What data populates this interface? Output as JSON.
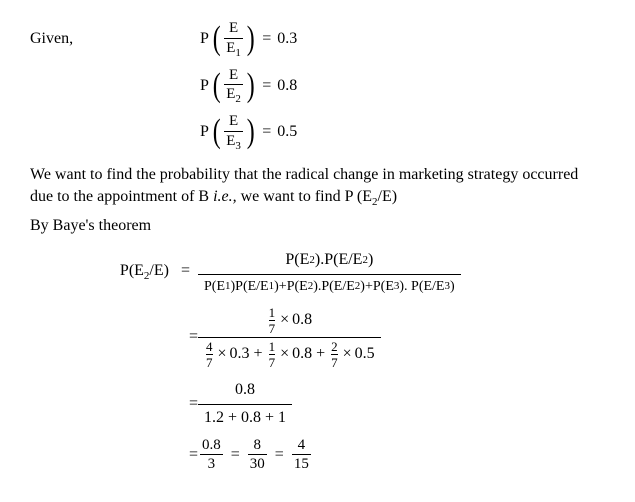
{
  "given_label": "Given,",
  "cond": {
    "e1": {
      "num": "E",
      "den_pre": "E",
      "den_sub": "1",
      "val": "0.3"
    },
    "e2": {
      "num": "E",
      "den_pre": "E",
      "den_sub": "2",
      "val": "0.8"
    },
    "e3": {
      "num": "E",
      "den_pre": "E",
      "den_sub": "3",
      "val": "0.5"
    }
  },
  "para1_a": "We want to find the probability that the radical change in marketing strategy occurred due to the appointment of B ",
  "para1_ie": "i.e.,",
  "para1_b": " we want to find P (E",
  "para1_sub": "2",
  "para1_c": "/E)",
  "para2": "By Baye's theorem",
  "bayes": {
    "lhs_a": "P(E",
    "lhs_sub": "2",
    "lhs_b": "/E)",
    "num_a": "P(E",
    "num_sub1": "2",
    "num_b": ").P(E/E",
    "num_sub2": "2",
    "num_c": ")",
    "den_t1a": "P(E",
    "den_t1s": "1",
    "den_t1b": ")P(E/E",
    "den_t1s2": "1",
    "den_t1c": ")",
    "den_t2a": "P(E",
    "den_t2s": "2",
    "den_t2b": ").P(E/E",
    "den_t2s2": "2",
    "den_t2c": ")",
    "den_t3a": "P(E",
    "den_t3s": "3",
    "den_t3b": "). P(E/E",
    "den_t3s2": "3",
    "den_t3c": ")"
  },
  "step2": {
    "num_f": {
      "n": "1",
      "d": "7"
    },
    "num_mul": "0.8",
    "d1_f": {
      "n": "4",
      "d": "7"
    },
    "d1_mul": "0.3",
    "d2_f": {
      "n": "1",
      "d": "7"
    },
    "d2_mul": "0.8",
    "d3_f": {
      "n": "2",
      "d": "7"
    },
    "d3_mul": "0.5"
  },
  "step3": {
    "num": "0.8",
    "den": "1.2 + 0.8 + 1"
  },
  "step4": {
    "f1": {
      "n": "0.8",
      "d": "3"
    },
    "f2": {
      "n": "8",
      "d": "30"
    },
    "f3": {
      "n": "4",
      "d": "15"
    }
  },
  "sym": {
    "eq": "=",
    "plus": "+",
    "times": "×"
  }
}
